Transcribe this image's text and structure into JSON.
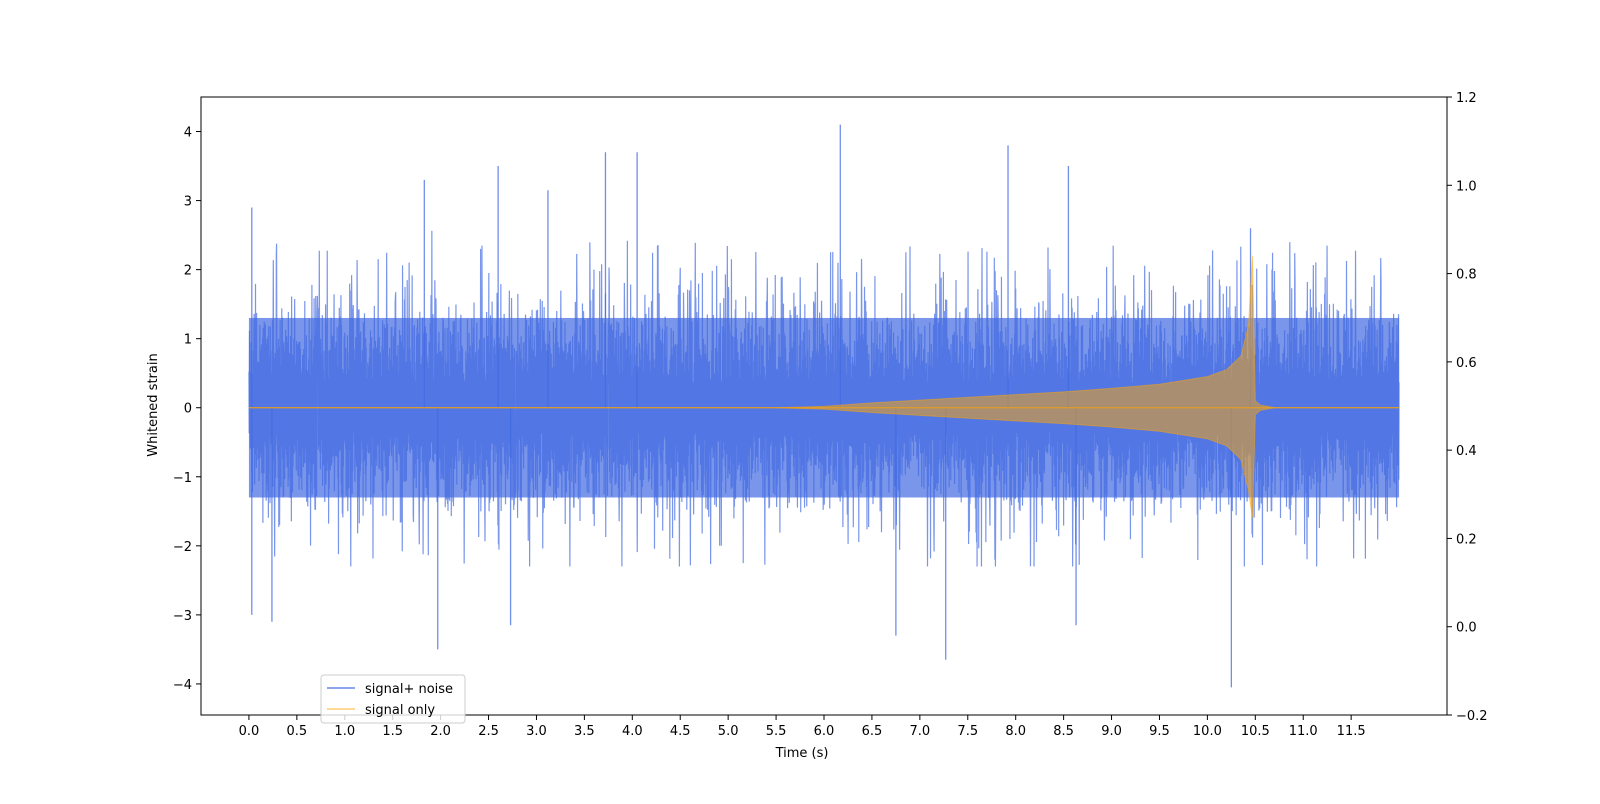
{
  "chart_data": {
    "type": "line",
    "title": "",
    "xlabel": "Time (s)",
    "ylabel": "Whitened strain",
    "xlim": [
      -0.5,
      12.5
    ],
    "ylim": [
      -4.45,
      4.5
    ],
    "y2lim": [
      -0.2,
      1.2
    ],
    "x_ticks": [
      "0.0",
      "0.5",
      "1.0",
      "1.5",
      "2.0",
      "2.5",
      "3.0",
      "3.5",
      "4.0",
      "4.5",
      "5.0",
      "5.5",
      "6.0",
      "6.5",
      "7.0",
      "7.5",
      "8.0",
      "8.5",
      "9.0",
      "9.5",
      "10.0",
      "10.5",
      "11.0",
      "11.5"
    ],
    "y_ticks": [
      "−4",
      "−3",
      "−2",
      "−1",
      "0",
      "1",
      "2",
      "3",
      "4"
    ],
    "y2_ticks": [
      "−0.2",
      "0.0",
      "0.2",
      "0.4",
      "0.6",
      "0.8",
      "1.0",
      "1.2"
    ],
    "grid": false,
    "legend_position": "lower-left",
    "series": [
      {
        "name": "signal+ noise",
        "color": "#4169e1",
        "alpha": 0.7,
        "time_range": [
          0.0,
          12.0
        ],
        "noise_envelope": {
          "typical_max": 2.6,
          "typical_min": -2.3,
          "dense_band": [
            -1.3,
            1.3
          ]
        },
        "notable_peaks": [
          {
            "t": 0.03,
            "y": 2.9
          },
          {
            "t": 0.03,
            "y": -3.0
          },
          {
            "t": 0.24,
            "y": -3.1
          },
          {
            "t": 1.83,
            "y": 3.3
          },
          {
            "t": 1.97,
            "y": -3.5
          },
          {
            "t": 2.6,
            "y": 3.5
          },
          {
            "t": 2.73,
            "y": -3.15
          },
          {
            "t": 3.12,
            "y": 3.15
          },
          {
            "t": 3.72,
            "y": 3.7
          },
          {
            "t": 4.05,
            "y": 3.7
          },
          {
            "t": 6.17,
            "y": 4.1
          },
          {
            "t": 6.75,
            "y": -3.3
          },
          {
            "t": 7.27,
            "y": -3.65
          },
          {
            "t": 7.92,
            "y": 3.8
          },
          {
            "t": 8.55,
            "y": 3.5
          },
          {
            "t": 8.63,
            "y": -3.15
          },
          {
            "t": 10.25,
            "y": -4.05
          },
          {
            "t": 10.45,
            "y": 2.6
          }
        ]
      },
      {
        "name": "signal only",
        "color": "#ffa500",
        "alpha": 0.5,
        "envelope": {
          "t": [
            0.0,
            5.5,
            6.0,
            6.5,
            7.0,
            7.5,
            8.0,
            8.5,
            9.0,
            9.5,
            10.0,
            10.2,
            10.35,
            10.43,
            10.47,
            10.5,
            10.55,
            10.7,
            12.0
          ],
          "amplitude": [
            0.0,
            0.0,
            0.02,
            0.07,
            0.11,
            0.15,
            0.19,
            0.23,
            0.28,
            0.34,
            0.45,
            0.55,
            0.75,
            1.2,
            2.2,
            0.1,
            0.04,
            0.0,
            0.0
          ]
        }
      }
    ]
  }
}
